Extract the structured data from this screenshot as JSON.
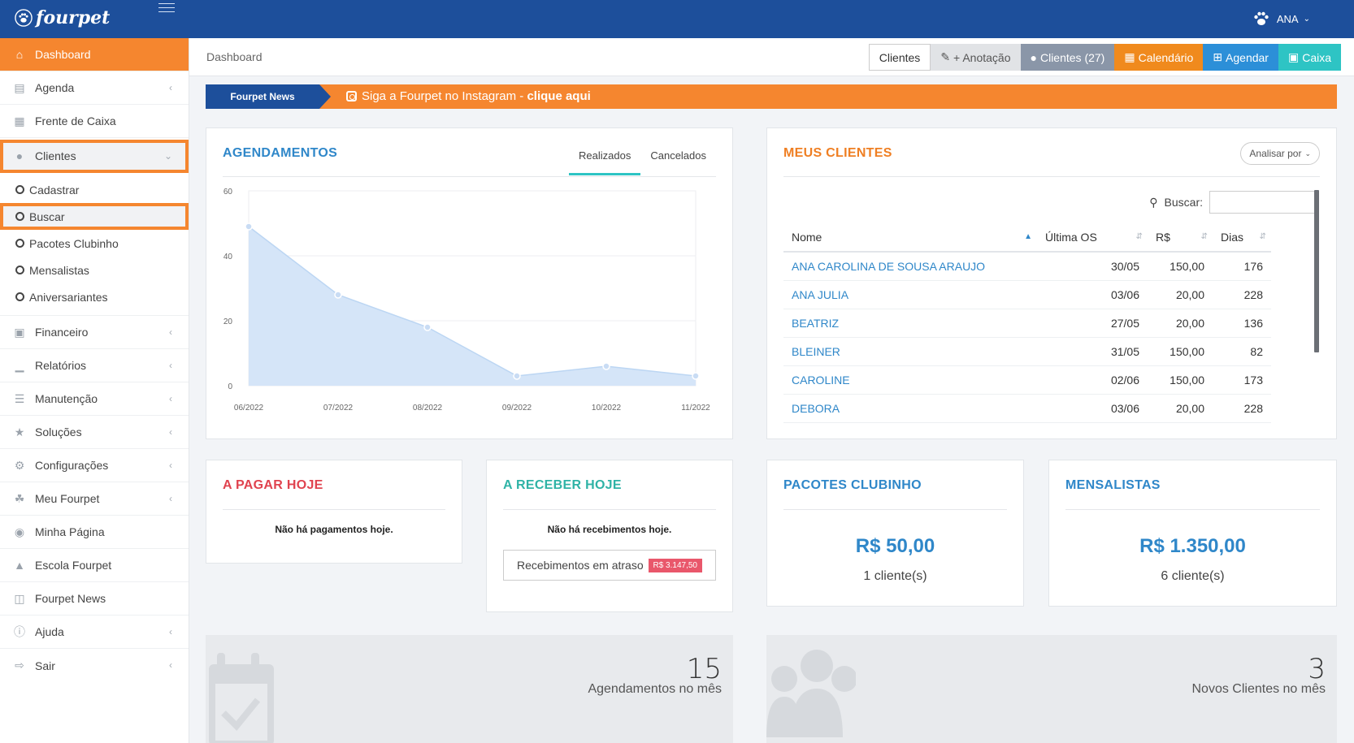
{
  "brand": {
    "name": "fourpet"
  },
  "user": {
    "name": "ANA"
  },
  "breadcrumb": "Dashboard",
  "toolbar": {
    "clientes": "Clientes",
    "anotacao": "+ Anotação",
    "clientes_count": "Clientes (27)",
    "calendario": "Calendário",
    "agendar": "Agendar",
    "caixa": "Caixa"
  },
  "sidebar": {
    "items": [
      {
        "label": "Dashboard",
        "icon": "home-icon"
      },
      {
        "label": "Agenda",
        "icon": "agenda-icon"
      },
      {
        "label": "Frente de Caixa",
        "icon": "calculator-icon"
      },
      {
        "label": "Clientes",
        "icon": "users-icon"
      },
      {
        "label": "Financeiro",
        "icon": "money-icon"
      },
      {
        "label": "Relatórios",
        "icon": "bar-chart-icon"
      },
      {
        "label": "Manutenção",
        "icon": "database-icon"
      },
      {
        "label": "Soluções",
        "icon": "star-icon"
      },
      {
        "label": "Configurações",
        "icon": "cogs-icon"
      },
      {
        "label": "Meu Fourpet",
        "icon": "paw-icon"
      },
      {
        "label": "Minha Página",
        "icon": "globe-icon"
      },
      {
        "label": "Escola Fourpet",
        "icon": "graduation-cap-icon"
      },
      {
        "label": "Fourpet News",
        "icon": "newspaper-icon"
      },
      {
        "label": "Ajuda",
        "icon": "info-icon"
      },
      {
        "label": "Sair",
        "icon": "sign-out-icon"
      }
    ],
    "clientes_sub": [
      "Cadastrar",
      "Buscar",
      "Pacotes Clubinho",
      "Mensalistas",
      "Aniversariantes"
    ]
  },
  "news": {
    "tag": "Fourpet News",
    "text": "Siga a Fourpet no Instagram - ",
    "link": "clique aqui"
  },
  "agendamentos": {
    "title": "AGENDAMENTOS",
    "tabs": [
      "Realizados",
      "Cancelados"
    ]
  },
  "chart_data": {
    "type": "area",
    "title": "AGENDAMENTOS",
    "categories": [
      "06/2022",
      "07/2022",
      "08/2022",
      "09/2022",
      "10/2022",
      "11/2022"
    ],
    "series": [
      {
        "values": [
          49,
          28,
          18,
          3,
          6,
          3
        ]
      }
    ],
    "ylim": [
      0,
      60
    ],
    "yticks": [
      0,
      20,
      40,
      60
    ],
    "grid": true,
    "colors": {
      "fill": "#d5e5f8",
      "line": "#bcd6f3",
      "point": "#c9dcf4"
    }
  },
  "clientes_panel": {
    "title": "MEUS CLIENTES",
    "analisar": "Analisar por",
    "buscar_label": "Buscar:",
    "columns": [
      "Nome",
      "Última OS",
      "R$",
      "Dias"
    ],
    "rows": [
      [
        "ANA CAROLINA DE SOUSA ARAUJO",
        "30/05",
        "150,00",
        "176"
      ],
      [
        "ANA JULIA",
        "03/06",
        "20,00",
        "228"
      ],
      [
        "BEATRIZ",
        "27/05",
        "20,00",
        "136"
      ],
      [
        "BLEINER",
        "31/05",
        "150,00",
        "82"
      ],
      [
        "CAROLINE",
        "02/06",
        "150,00",
        "173"
      ],
      [
        "DEBORA",
        "03/06",
        "20,00",
        "228"
      ]
    ]
  },
  "pagar": {
    "title": "A PAGAR HOJE",
    "empty": "Não há pagamentos hoje."
  },
  "receber": {
    "title": "A RECEBER HOJE",
    "empty": "Não há recebimentos hoje.",
    "atraso_label": "Recebimentos em atraso",
    "atraso_value": "R$ 3.147,50"
  },
  "clubinho": {
    "title": "PACOTES CLUBINHO",
    "value": "R$ 50,00",
    "sub": "1 cliente(s)"
  },
  "mensalistas": {
    "title": "MENSALISTAS",
    "value": "R$ 1.350,00",
    "sub": "6 cliente(s)"
  },
  "stats": [
    {
      "number": "15",
      "label": "Agendamentos no mês",
      "icon": "calendar-check-icon"
    },
    {
      "number": "3",
      "label": "Novos Clientes no mês",
      "icon": "users-icon"
    }
  ]
}
